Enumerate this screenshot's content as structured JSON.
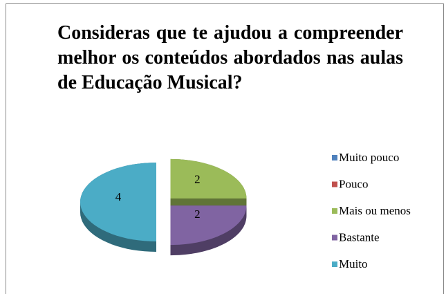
{
  "chart_data": {
    "type": "pie3d",
    "title": "Consideras que te ajudou a compreender melhor os conteúdos abordados nas aulas de Educação Musical?",
    "categories": [
      "Muito pouco",
      "Pouco",
      "Mais ou menos",
      "Bastante",
      "Muito"
    ],
    "values": [
      0,
      0,
      2,
      2,
      4
    ],
    "colors": [
      "#4f81bd",
      "#c0504d",
      "#9bbb59",
      "#8064a2",
      "#4bacc6"
    ],
    "legend": "right",
    "exploded": true
  }
}
